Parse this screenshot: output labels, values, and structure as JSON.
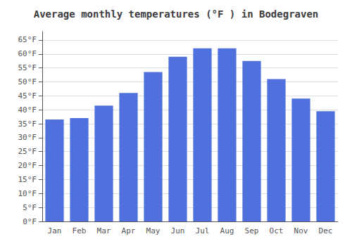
{
  "chart_data": {
    "type": "bar",
    "title": "Average monthly temperatures (°F ) in Bodegraven",
    "categories": [
      "Jan",
      "Feb",
      "Mar",
      "Apr",
      "May",
      "Jun",
      "Jul",
      "Aug",
      "Sep",
      "Oct",
      "Nov",
      "Dec"
    ],
    "values": [
      36.5,
      37.0,
      41.5,
      46.0,
      53.5,
      59.0,
      62.0,
      62.0,
      57.5,
      51.0,
      44.0,
      39.5
    ],
    "ylim": [
      0,
      68
    ],
    "yticks": [
      {
        "value": 0,
        "label": "0°F"
      },
      {
        "value": 5,
        "label": "5°F"
      },
      {
        "value": 10,
        "label": "10°F"
      },
      {
        "value": 15,
        "label": "15°F"
      },
      {
        "value": 20,
        "label": "20°F"
      },
      {
        "value": 25,
        "label": "25°F"
      },
      {
        "value": 30,
        "label": "30°F"
      },
      {
        "value": 35,
        "label": "35°F"
      },
      {
        "value": 40,
        "label": "40°F"
      },
      {
        "value": 45,
        "label": "45°F"
      },
      {
        "value": 50,
        "label": "50°F"
      },
      {
        "value": 55,
        "label": "55°F"
      },
      {
        "value": 60,
        "label": "60°F"
      },
      {
        "value": 65,
        "label": "65°F"
      }
    ],
    "grid": true
  }
}
